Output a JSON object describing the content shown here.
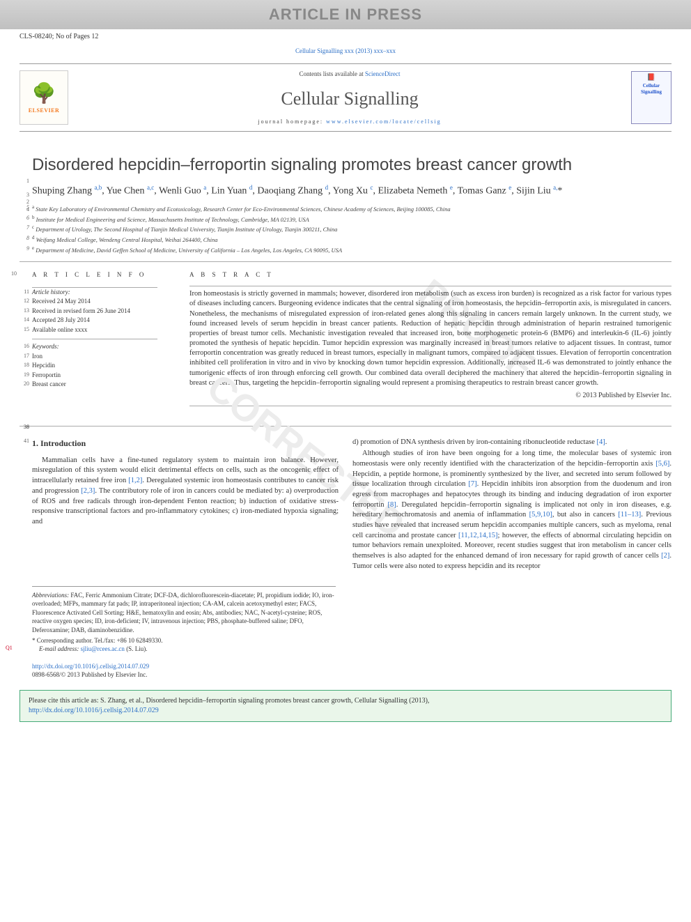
{
  "banner": "ARTICLE IN PRESS",
  "article_id": "CLS-08240; No of Pages 12",
  "journal_ref": "Cellular Signalling xxx (2013) xxx–xxx",
  "header": {
    "contents_prefix": "Contents lists available at ",
    "contents_link": "ScienceDirect",
    "journal_name": "Cellular Signalling",
    "homepage_prefix": "journal homepage: ",
    "homepage_url": "www.elsevier.com/locate/cellsig",
    "publisher": "ELSEVIER",
    "cover_label": "Cellular Signalling"
  },
  "title": "Disordered hepcidin–ferroportin signaling promotes breast cancer growth",
  "authors_html": "Shuping Zhang <sup>a,b</sup>, Yue Chen <sup>a,c</sup>, Wenli Guo <sup>a</sup>, Lin Yuan <sup>d</sup>, Daoqiang Zhang <sup>d</sup>, Yong Xu <sup>c</sup>, Elizabeta Nemeth <sup>e</sup>, Tomas Ganz <sup>e</sup>, Sijin Liu <sup>a,</sup><span class='star'>*</span>",
  "affiliations": [
    "a State Key Laboratory of Environmental Chemistry and Ecotoxicology, Research Center for Eco-Environmental Sciences, Chinese Academy of Sciences, Beijing 100085, China",
    "b Institute for Medical Engineering and Science, Massachusetts Institute of Technology, Cambridge, MA 02139, USA",
    "c Department of Urology, The Second Hospital of Tianjin Medical University, Tianjin Institute of Urology, Tianjin 300211, China",
    "d Weifang Medical College, Wendeng Central Hospital, Weihai 264400, China",
    "e Department of Medicine, David Geffen School of Medicine, University of California – Los Angeles, Los Angeles, CA 90095, USA"
  ],
  "info": {
    "heading": "A R T I C L E   I N F O",
    "history_label": "Article history:",
    "received": "Received 24 May 2014",
    "revised": "Received in revised form 26 June 2014",
    "accepted": "Accepted 28 July 2014",
    "online": "Available online xxxx",
    "keywords_label": "Keywords:",
    "keywords": [
      "Iron",
      "Hepcidin",
      "Ferroportin",
      "Breast cancer"
    ]
  },
  "abstract": {
    "heading": "A B S T R A C T",
    "text": "Iron homeostasis is strictly governed in mammals; however, disordered iron metabolism (such as excess iron burden) is recognized as a risk factor for various types of diseases including cancers. Burgeoning evidence indicates that the central signaling of iron homeostasis, the hepcidin–ferroportin axis, is misregulated in cancers. Nonetheless, the mechanisms of misregulated expression of iron-related genes along this signaling in cancers remain largely unknown. In the current study, we found increased levels of serum hepcidin in breast cancer patients. Reduction of hepatic hepcidin through administration of heparin restrained tumorigenic properties of breast tumor cells. Mechanistic investigation revealed that increased iron, bone morphogenetic protein-6 (BMP6) and interleukin-6 (IL-6) jointly promoted the synthesis of hepatic hepcidin. Tumor hepcidin expression was marginally increased in breast tumors relative to adjacent tissues. In contrast, tumor ferroportin concentration was greatly reduced in breast tumors, especially in malignant tumors, compared to adjacent tissues. Elevation of ferroportin concentration inhibited cell proliferation in vitro and in vivo by knocking down tumor hepcidin expression. Additionally, increased IL-6 was demonstrated to jointly enhance the tumorigenic effects of iron through enforcing cell growth. Our combined data overall deciphered the machinery that altered the hepcidin–ferroportin signaling in breast cancers. Thus, targeting the hepcidin–ferroportin signaling would represent a promising therapeutics to restrain breast cancer growth.",
    "copyright": "© 2013 Published by Elsevier Inc."
  },
  "intro": {
    "heading": "1. Introduction",
    "col1": "Mammalian cells have a fine-tuned regulatory system to maintain iron balance. However, misregulation of this system would elicit detrimental effects on cells, such as the oncogenic effect of intracellularly retained free iron <span class='ref'>[1,2]</span>. Deregulated systemic iron homeostasis contributes to cancer risk and progression <span class='ref'>[2,3]</span>. The contributory role of iron in cancers could be mediated by: a) overproduction of ROS and free radicals through iron-dependent Fenton reaction; b) induction of oxidative stress-responsive transcriptional factors and pro-inflammatory cytokines; c) iron-mediated hypoxia signaling; and",
    "col2_top": "d) promotion of DNA synthesis driven by iron-containing ribonucleotide reductase <span class='ref'>[4]</span>.",
    "col2": "Although studies of iron have been ongoing for a long time, the molecular bases of systemic iron homeostasis were only recently identified with the characterization of the hepcidin–ferroportin axis <span class='ref'>[5,6]</span>. Hepcidin, a peptide hormone, is prominently synthesized by the liver, and secreted into serum followed by tissue localization through circulation <span class='ref'>[7]</span>. Hepcidin inhibits iron absorption from the duodenum and iron egress from macrophages and hepatocytes through its binding and inducing degradation of iron exporter ferroportin <span class='ref'>[8]</span>. Deregulated hepcidin–ferroportin signaling is implicated not only in iron diseases, e.g. hereditary hemochromatosis and anemia of inflammation <span class='ref'>[5,9,10]</span>, but also in cancers <span class='ref'>[11–13]</span>. Previous studies have revealed that increased serum hepcidin accompanies multiple cancers, such as myeloma, renal cell carcinoma and prostate cancer <span class='ref'>[11,12,14,15]</span>; however, the effects of abnormal circulating hepcidin on tumor behaviors remain unexploited. Moreover, recent studies suggest that iron metabolism in cancer cells themselves is also adapted for the enhanced demand of iron necessary for rapid growth of cancer cells <span class='ref'>[2]</span>. Tumor cells were also noted to express hepcidin and its receptor"
  },
  "footnotes": {
    "abbr_label": "Abbreviations:",
    "abbr": " FAC, Ferric Ammonium Citrate; DCF-DA, dichlorofluorescein-diacetate; PI, propidium iodide; IO, iron-overloaded; MFPs, mammary fat pads; IP, intraperitoneal injection; CA-AM, calcein acetoxymethyl ester; FACS, Fluorescence Activated Cell Sorting; H&E, hematoxylin and eosin; Abs, antibodies; NAC, N-acetyl-cysteine; ROS, reactive oxygen species; ID, iron-deficient; IV, intravenous injection; PBS, phosphate-buffered saline; DFO, Deferoxamine; DAB, diaminobenzidine.",
    "corr": "* Corresponding author. Tel./fax: +86 10 62849330.",
    "email_label": "E-mail address: ",
    "email": "sjliu@rcees.ac.cn",
    "email_suffix": " (S. Liu).",
    "q1": "Q1"
  },
  "doi": {
    "url": "http://dx.doi.org/10.1016/j.cellsig.2014.07.029",
    "issn": "0898-6568/© 2013 Published by Elsevier Inc."
  },
  "cite_box": "Please cite this article as: S. Zhang, et al., Disordered hepcidin–ferroportin signaling promotes breast cancer growth, Cellular Signalling (2013), ",
  "cite_link": "http://dx.doi.org/10.1016/j.cellsig.2014.07.029",
  "line_numbers": {
    "title1": "1",
    "title2": "2",
    "auth1": "3",
    "auth2": "4",
    "aff": [
      "5",
      "6",
      "7",
      "8",
      "9"
    ],
    "info_head": "10",
    "info": [
      "11",
      "12",
      "13",
      "14",
      "15",
      "16",
      "17",
      "18",
      "19",
      "20"
    ],
    "abs_r": [
      "21",
      "22",
      "23",
      "24",
      "25",
      "26",
      "27",
      "28",
      "29",
      "30",
      "31",
      "32",
      "33",
      "34",
      "35"
    ],
    "abs_end": [
      "36",
      "38",
      "39"
    ],
    "intro_h": "41",
    "col1": [
      "42",
      "43",
      "44",
      "45",
      "46",
      "47",
      "48",
      "49",
      "50"
    ],
    "col2_top": [
      "51",
      "52"
    ],
    "col2": [
      "53",
      "54",
      "55",
      "56",
      "57",
      "58",
      "59",
      "60",
      "61",
      "62",
      "63",
      "64",
      "65",
      "66",
      "67",
      "68",
      "69",
      "70"
    ]
  },
  "colors": {
    "link": "#2a6ec6",
    "banner_bg": "#c8c8c8",
    "cite_bg": "#eaf6ea",
    "cite_border": "#4a7",
    "q1": "#c02222"
  }
}
